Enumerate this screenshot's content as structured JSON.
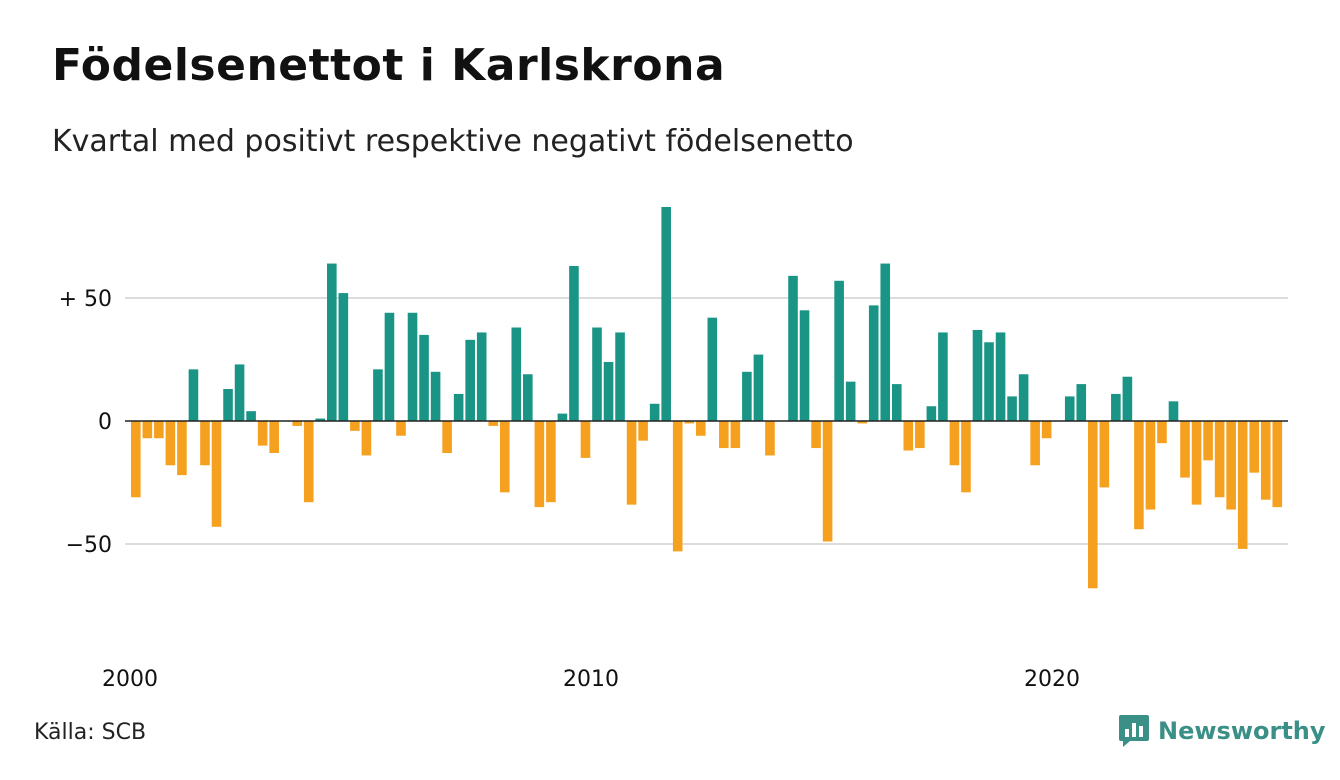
{
  "title": "Födelsenettot i Karlskrona",
  "subtitle": "Kvartal med positivt respektive negativt födelsenetto",
  "source": "Källa: SCB",
  "brand": "Newsworthy",
  "colors": {
    "positive": "#1a9585",
    "negative": "#f5a11f",
    "grid": "#dcdcdc",
    "axis": "#222222"
  },
  "chart_data": {
    "type": "bar",
    "title": "Födelsenettot i Karlskrona",
    "subtitle": "Kvartal med positivt respektive negativt födelsenetto",
    "y_ticks": [
      {
        "value": 50,
        "label": "+ 50"
      },
      {
        "value": 0,
        "label": "0"
      },
      {
        "value": -50,
        "label": "−50"
      }
    ],
    "x_ticks": [
      {
        "value": 2000,
        "label": "2000"
      },
      {
        "value": 2010,
        "label": "2010"
      },
      {
        "value": 2020,
        "label": "2020"
      }
    ],
    "ylim": [
      -80,
      90
    ],
    "grid": true,
    "start": "2000 Q1",
    "values": [
      -31,
      -7,
      -7,
      -18,
      -22,
      21,
      -18,
      -43,
      13,
      23,
      4,
      -10,
      -13,
      0,
      -2,
      -33,
      1,
      64,
      52,
      -4,
      -14,
      21,
      44,
      -6,
      44,
      35,
      20,
      -13,
      11,
      33,
      36,
      -2,
      -29,
      38,
      19,
      -35,
      -33,
      3,
      63,
      -15,
      38,
      24,
      36,
      -34,
      -8,
      7,
      87,
      -53,
      -1,
      -6,
      42,
      -11,
      -11,
      20,
      27,
      -14,
      0,
      59,
      45,
      -11,
      -49,
      57,
      16,
      -1,
      47,
      64,
      15,
      -12,
      -11,
      6,
      36,
      -18,
      -29,
      37,
      32,
      36,
      10,
      19,
      -18,
      -7,
      0,
      10,
      15,
      -68,
      -27,
      11,
      18,
      -44,
      -36,
      -9,
      8,
      -23,
      -34,
      -16,
      -31,
      -36,
      -52,
      -21,
      -32,
      -35
    ]
  }
}
